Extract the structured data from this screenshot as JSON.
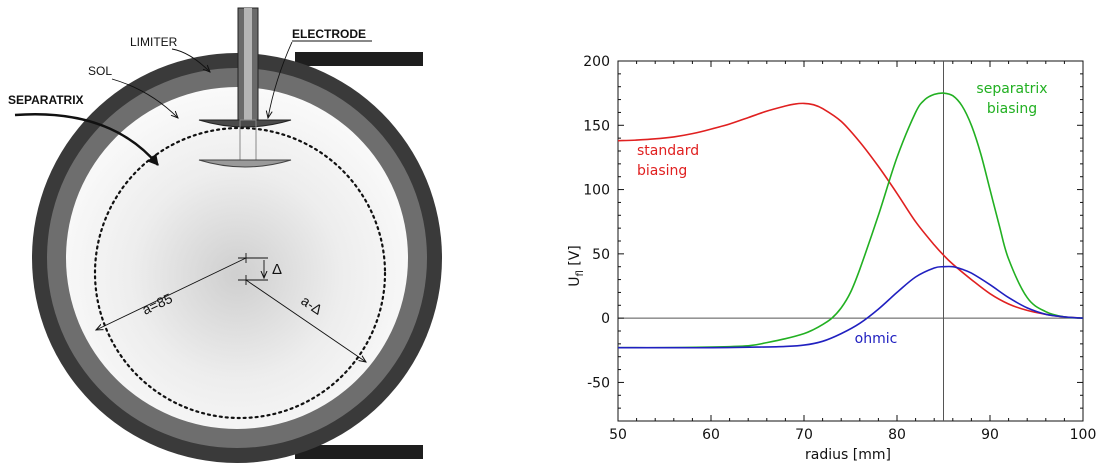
{
  "diagram": {
    "labels": {
      "limiter": "LIMITER",
      "electrode": "ELECTRODE",
      "sol": "SOL",
      "separatrix": "SEPARATRIX",
      "radius": "a=85",
      "shift": "Δ",
      "shifted_radius": "a-Δ"
    },
    "colors": {
      "limiter": "#3a3a3a",
      "sol": "#6e6e6e",
      "electrode": "#555555"
    }
  },
  "chart_data": {
    "type": "line",
    "xlabel": "radius [mm]",
    "ylabel": {
      "main": "U",
      "sub": "fl",
      "unit": " [V]"
    },
    "xlim": [
      50,
      100
    ],
    "ylim": [
      -80,
      200
    ],
    "xticks": [
      50,
      60,
      70,
      80,
      90,
      100
    ],
    "yticks": [
      -50,
      0,
      50,
      100,
      150,
      200
    ],
    "grid": false,
    "reference_lines": {
      "horizontal_y": 0,
      "vertical_x": 85
    },
    "series": [
      {
        "name": "standard biasing",
        "label_lines": [
          "standard",
          "biasing"
        ],
        "color": "#e02020",
        "x": [
          50,
          52,
          54,
          56,
          58,
          60,
          62,
          64,
          66,
          68,
          69,
          70,
          71,
          72,
          74,
          76,
          78,
          80,
          82,
          84,
          85,
          86,
          88,
          90,
          92,
          94,
          96,
          98,
          100
        ],
        "y": [
          138,
          138.5,
          139.5,
          141,
          143.5,
          147,
          151,
          156,
          161,
          165,
          166.5,
          167,
          166,
          163,
          153,
          137,
          118,
          97,
          75,
          57,
          49,
          42,
          30,
          19,
          11,
          6,
          3,
          1,
          0
        ]
      },
      {
        "name": "separatrix biasing",
        "label_lines": [
          "separatrix",
          "biasing"
        ],
        "color": "#22b022",
        "x": [
          50,
          55,
          60,
          64,
          66,
          68,
          70,
          71,
          72,
          73,
          74,
          75,
          76,
          78,
          80,
          82,
          83,
          84,
          85,
          86,
          87,
          88,
          89,
          90,
          91,
          92,
          94,
          96,
          98,
          100
        ],
        "y": [
          -23,
          -23,
          -22.5,
          -21.5,
          -19,
          -16,
          -12,
          -9,
          -5,
          0,
          8,
          20,
          38,
          80,
          125,
          160,
          170,
          174,
          175,
          173,
          165,
          150,
          128,
          100,
          72,
          46,
          16,
          5,
          1,
          0
        ]
      },
      {
        "name": "ohmic",
        "label_lines": [
          "ohmic"
        ],
        "color": "#2020c0",
        "x": [
          50,
          55,
          60,
          65,
          68,
          70,
          72,
          74,
          76,
          78,
          80,
          82,
          84,
          85,
          86,
          87,
          88,
          90,
          92,
          94,
          96,
          98,
          100
        ],
        "y": [
          -23,
          -23,
          -23,
          -22.5,
          -22,
          -21,
          -18,
          -12,
          -4,
          7,
          20,
          32,
          39,
          40,
          40,
          38,
          35,
          26,
          16,
          8,
          3,
          1,
          0
        ]
      }
    ]
  }
}
